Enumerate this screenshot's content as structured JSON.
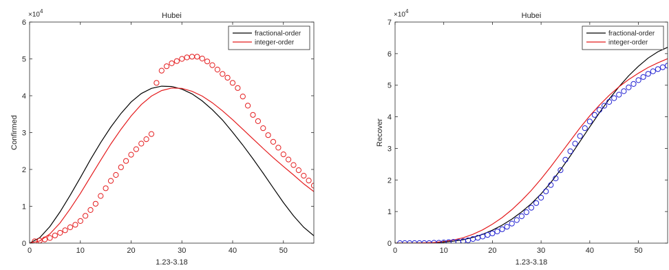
{
  "chart_data": [
    {
      "type": "line",
      "title": "Hubei",
      "xlabel": "1.23-3.18",
      "ylabel": "Confirmed",
      "exponent_label": "×10",
      "exponent_power": "4",
      "xlim": [
        0,
        56
      ],
      "ylim": [
        0,
        60000
      ],
      "xticks": [
        0,
        10,
        20,
        30,
        40,
        50
      ],
      "yticks": [
        0,
        10000,
        20000,
        30000,
        40000,
        50000,
        60000
      ],
      "ytick_labels": [
        "0",
        "1",
        "2",
        "3",
        "4",
        "5",
        "6"
      ],
      "legend_position": "top-right",
      "legend": [
        "fractional-order",
        "integer-order"
      ],
      "series": [
        {
          "name": "fractional-order",
          "color": "#000000",
          "x": [
            0,
            2,
            4,
            6,
            8,
            10,
            12,
            14,
            16,
            18,
            20,
            22,
            24,
            26,
            28,
            30,
            32,
            34,
            36,
            38,
            40,
            42,
            44,
            46,
            48,
            50,
            52,
            54,
            56
          ],
          "y": [
            0,
            1500,
            4500,
            8500,
            13000,
            17800,
            22700,
            27300,
            31500,
            35200,
            38300,
            40600,
            42000,
            42600,
            42500,
            41800,
            40500,
            38600,
            36200,
            33400,
            30100,
            26600,
            22900,
            19000,
            15000,
            11000,
            7400,
            4300,
            2000
          ]
        },
        {
          "name": "integer-order",
          "color": "#e41a1c",
          "x": [
            0,
            2,
            4,
            6,
            8,
            10,
            12,
            14,
            16,
            18,
            20,
            22,
            24,
            26,
            28,
            30,
            32,
            34,
            36,
            38,
            40,
            42,
            44,
            46,
            48,
            50,
            52,
            54,
            56
          ],
          "y": [
            0,
            600,
            2500,
            5500,
            9300,
            13500,
            18000,
            22500,
            26900,
            30900,
            34500,
            37600,
            39900,
            41400,
            42100,
            42000,
            41200,
            39900,
            38100,
            35900,
            33500,
            30900,
            28300,
            25700,
            23200,
            20800,
            18500,
            16100,
            14000
          ]
        }
      ],
      "observed": {
        "color": "#e41a1c",
        "x": [
          1,
          2,
          3,
          4,
          5,
          6,
          7,
          8,
          9,
          10,
          11,
          12,
          13,
          14,
          15,
          16,
          17,
          18,
          19,
          20,
          21,
          22,
          23,
          24,
          25,
          26,
          27,
          28,
          29,
          30,
          31,
          32,
          33,
          34,
          35,
          36,
          37,
          38,
          39,
          40,
          41,
          42,
          43,
          44,
          45,
          46,
          47,
          48,
          49,
          50,
          51,
          52,
          53,
          54,
          55,
          56
        ],
        "y": [
          500,
          700,
          1000,
          1400,
          2100,
          2800,
          3500,
          4300,
          5000,
          6000,
          7400,
          9000,
          10700,
          12800,
          14900,
          16900,
          18500,
          20600,
          22300,
          24000,
          25500,
          27000,
          28200,
          29600,
          43500,
          46800,
          48000,
          48800,
          49400,
          50000,
          50400,
          50600,
          50600,
          50100,
          49300,
          48300,
          47100,
          45900,
          44900,
          43500,
          42100,
          39800,
          37300,
          34800,
          33100,
          31200,
          29300,
          27500,
          25900,
          24100,
          22700,
          21200,
          19800,
          18300,
          17000,
          15600
        ]
      }
    },
    {
      "type": "line",
      "title": "Hubei",
      "xlabel": "1.23-3.18",
      "ylabel": "Recover",
      "exponent_label": "×10",
      "exponent_power": "4",
      "xlim": [
        0,
        56
      ],
      "ylim": [
        0,
        70000
      ],
      "xticks": [
        0,
        10,
        20,
        30,
        40,
        50
      ],
      "yticks": [
        0,
        10000,
        20000,
        30000,
        40000,
        50000,
        60000,
        70000
      ],
      "ytick_labels": [
        "0",
        "1",
        "2",
        "3",
        "4",
        "5",
        "6",
        "7"
      ],
      "legend_position": "top-right",
      "legend": [
        "fractional-order",
        "integer-order"
      ],
      "series": [
        {
          "name": "fractional-order",
          "color": "#000000",
          "x": [
            0,
            4,
            8,
            10,
            12,
            14,
            16,
            18,
            20,
            22,
            24,
            26,
            28,
            30,
            32,
            34,
            36,
            38,
            40,
            42,
            44,
            46,
            48,
            50,
            52,
            54,
            56
          ],
          "y": [
            0,
            0,
            100,
            300,
            600,
            1100,
            1800,
            2800,
            4100,
            5700,
            7600,
            9900,
            12500,
            15600,
            19200,
            23200,
            27600,
            32200,
            36800,
            41300,
            45600,
            49500,
            53000,
            56000,
            58600,
            60600,
            62000
          ]
        },
        {
          "name": "integer-order",
          "color": "#e41a1c",
          "x": [
            0,
            4,
            8,
            10,
            12,
            14,
            16,
            18,
            20,
            22,
            24,
            26,
            28,
            30,
            32,
            34,
            36,
            38,
            40,
            42,
            44,
            46,
            48,
            50,
            52,
            54,
            56
          ],
          "y": [
            0,
            0,
            200,
            500,
            1000,
            1700,
            2800,
            4200,
            6000,
            8100,
            10600,
            13500,
            16700,
            20300,
            24200,
            28300,
            32400,
            36500,
            40300,
            43700,
            46800,
            49500,
            51800,
            53800,
            55600,
            57100,
            58400
          ]
        }
      ],
      "observed": {
        "color": "#1f1fd1",
        "x": [
          1,
          2,
          3,
          4,
          5,
          6,
          7,
          8,
          9,
          10,
          11,
          12,
          13,
          14,
          15,
          16,
          17,
          18,
          19,
          20,
          21,
          22,
          23,
          24,
          25,
          26,
          27,
          28,
          29,
          30,
          31,
          32,
          33,
          34,
          35,
          36,
          37,
          38,
          39,
          40,
          41,
          42,
          43,
          44,
          45,
          46,
          47,
          48,
          49,
          50,
          51,
          52,
          53,
          54,
          55,
          56
        ],
        "y": [
          0,
          0,
          0,
          0,
          0,
          0,
          0,
          100,
          100,
          200,
          300,
          400,
          400,
          600,
          900,
          1300,
          1700,
          2100,
          2600,
          3100,
          3700,
          4400,
          5200,
          6200,
          7300,
          8500,
          9800,
          11200,
          12700,
          14400,
          16400,
          18400,
          20500,
          23100,
          26400,
          29100,
          31500,
          33900,
          36400,
          38500,
          40600,
          42200,
          43500,
          44700,
          45900,
          47000,
          48100,
          49300,
          50400,
          51600,
          52600,
          53600,
          54400,
          55100,
          55700,
          56200
        ]
      }
    }
  ]
}
